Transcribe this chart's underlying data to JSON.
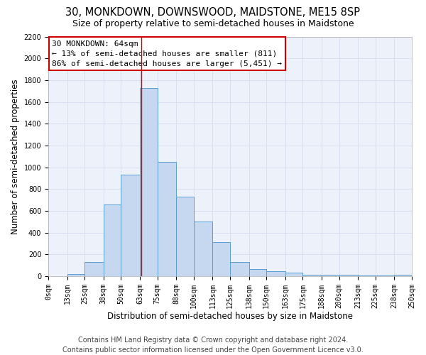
{
  "title1": "30, MONKDOWN, DOWNSWOOD, MAIDSTONE, ME15 8SP",
  "title2": "Size of property relative to semi-detached houses in Maidstone",
  "xlabel": "Distribution of semi-detached houses by size in Maidstone",
  "ylabel": "Number of semi-detached properties",
  "bar_left_edges": [
    0,
    13,
    25,
    38,
    50,
    63,
    75,
    88,
    100,
    113,
    125,
    138,
    150,
    163,
    175,
    188,
    200,
    213,
    225,
    238
  ],
  "bar_widths": [
    13,
    12,
    13,
    12,
    13,
    12,
    13,
    12,
    13,
    12,
    13,
    12,
    13,
    12,
    13,
    12,
    13,
    12,
    13,
    12
  ],
  "bar_heights": [
    0,
    20,
    130,
    660,
    930,
    1730,
    1050,
    730,
    500,
    310,
    130,
    65,
    45,
    30,
    15,
    10,
    15,
    5,
    5,
    15
  ],
  "bar_color": "#c5d8f0",
  "bar_edgecolor": "#5a9fd4",
  "tick_labels": [
    "0sqm",
    "13sqm",
    "25sqm",
    "38sqm",
    "50sqm",
    "63sqm",
    "75sqm",
    "88sqm",
    "100sqm",
    "113sqm",
    "125sqm",
    "138sqm",
    "150sqm",
    "163sqm",
    "175sqm",
    "188sqm",
    "200sqm",
    "213sqm",
    "225sqm",
    "238sqm",
    "250sqm"
  ],
  "property_line_x": 64,
  "property_line_color": "#cc0000",
  "annotation_text": "30 MONKDOWN: 64sqm\n← 13% of semi-detached houses are smaller (811)\n86% of semi-detached houses are larger (5,451) →",
  "annotation_box_color": "#cc0000",
  "ylim": [
    0,
    2200
  ],
  "yticks": [
    0,
    200,
    400,
    600,
    800,
    1000,
    1200,
    1400,
    1600,
    1800,
    2000,
    2200
  ],
  "xlim": [
    0,
    250
  ],
  "grid_color": "#d8dff0",
  "bg_color": "#edf1fa",
  "footer1": "Contains HM Land Registry data © Crown copyright and database right 2024.",
  "footer2": "Contains public sector information licensed under the Open Government Licence v3.0.",
  "title1_fontsize": 10.5,
  "title2_fontsize": 9,
  "axis_label_fontsize": 8.5,
  "tick_fontsize": 7,
  "annotation_fontsize": 8,
  "footer_fontsize": 7
}
